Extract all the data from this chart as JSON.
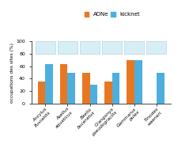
{
  "categories": [
    "Ancylus\nfluviatilis",
    "Asellus\naquaticus",
    "Baetis\nbuceratus",
    "Crangonyx\npseudogracilis",
    "Gammarus\npulex",
    "Tinodes\nwaeneri"
  ],
  "adne_values": [
    35,
    64,
    50,
    35,
    70,
    0
  ],
  "kicknet_values": [
    64,
    50,
    30,
    50,
    70,
    50
  ],
  "adne_color": "#E87722",
  "kicknet_color": "#4DAFDE",
  "ylabel": "occupations des sites (%)",
  "ylim": [
    0,
    100
  ],
  "yticks": [
    0,
    20,
    40,
    60,
    80,
    100
  ],
  "legend_adne": "ADNe",
  "legend_kicknet": "kicknet",
  "bar_width": 0.35,
  "background_color": "#ffffff",
  "img_box_color": "#d8eef6",
  "img_box_edge": "#aaccdd"
}
